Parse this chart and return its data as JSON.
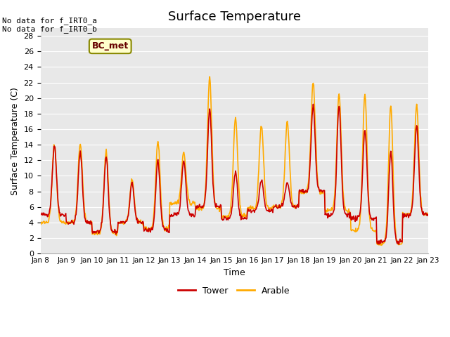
{
  "title": "Surface Temperature",
  "xlabel": "Time",
  "ylabel": "Surface Temperature (C)",
  "ylim": [
    0,
    29
  ],
  "yticks": [
    0,
    2,
    4,
    6,
    8,
    10,
    12,
    14,
    16,
    18,
    20,
    22,
    24,
    26,
    28
  ],
  "xtick_labels": [
    "Jan 8",
    "Jan 9",
    "Jan 10",
    "Jan 11",
    "Jan 12",
    "Jan 13",
    "Jan 14",
    "Jan 15",
    "Jan 16",
    "Jan 17",
    "Jan 18",
    "Jan 19",
    "Jan 20",
    "Jan 21",
    "Jan 22",
    "Jan 23"
  ],
  "tower_color": "#cc0000",
  "arable_color": "#ffaa00",
  "bg_color": "#e8e8e8",
  "annotation_text": "No data for f_IRT0_a\nNo data for f_IRT0_b",
  "legend_box_color": "#ffffcc",
  "legend_box_edge": "#888800",
  "legend_box_label": "BC_met",
  "grid_color": "#ffffff",
  "linewidth": 1.2
}
